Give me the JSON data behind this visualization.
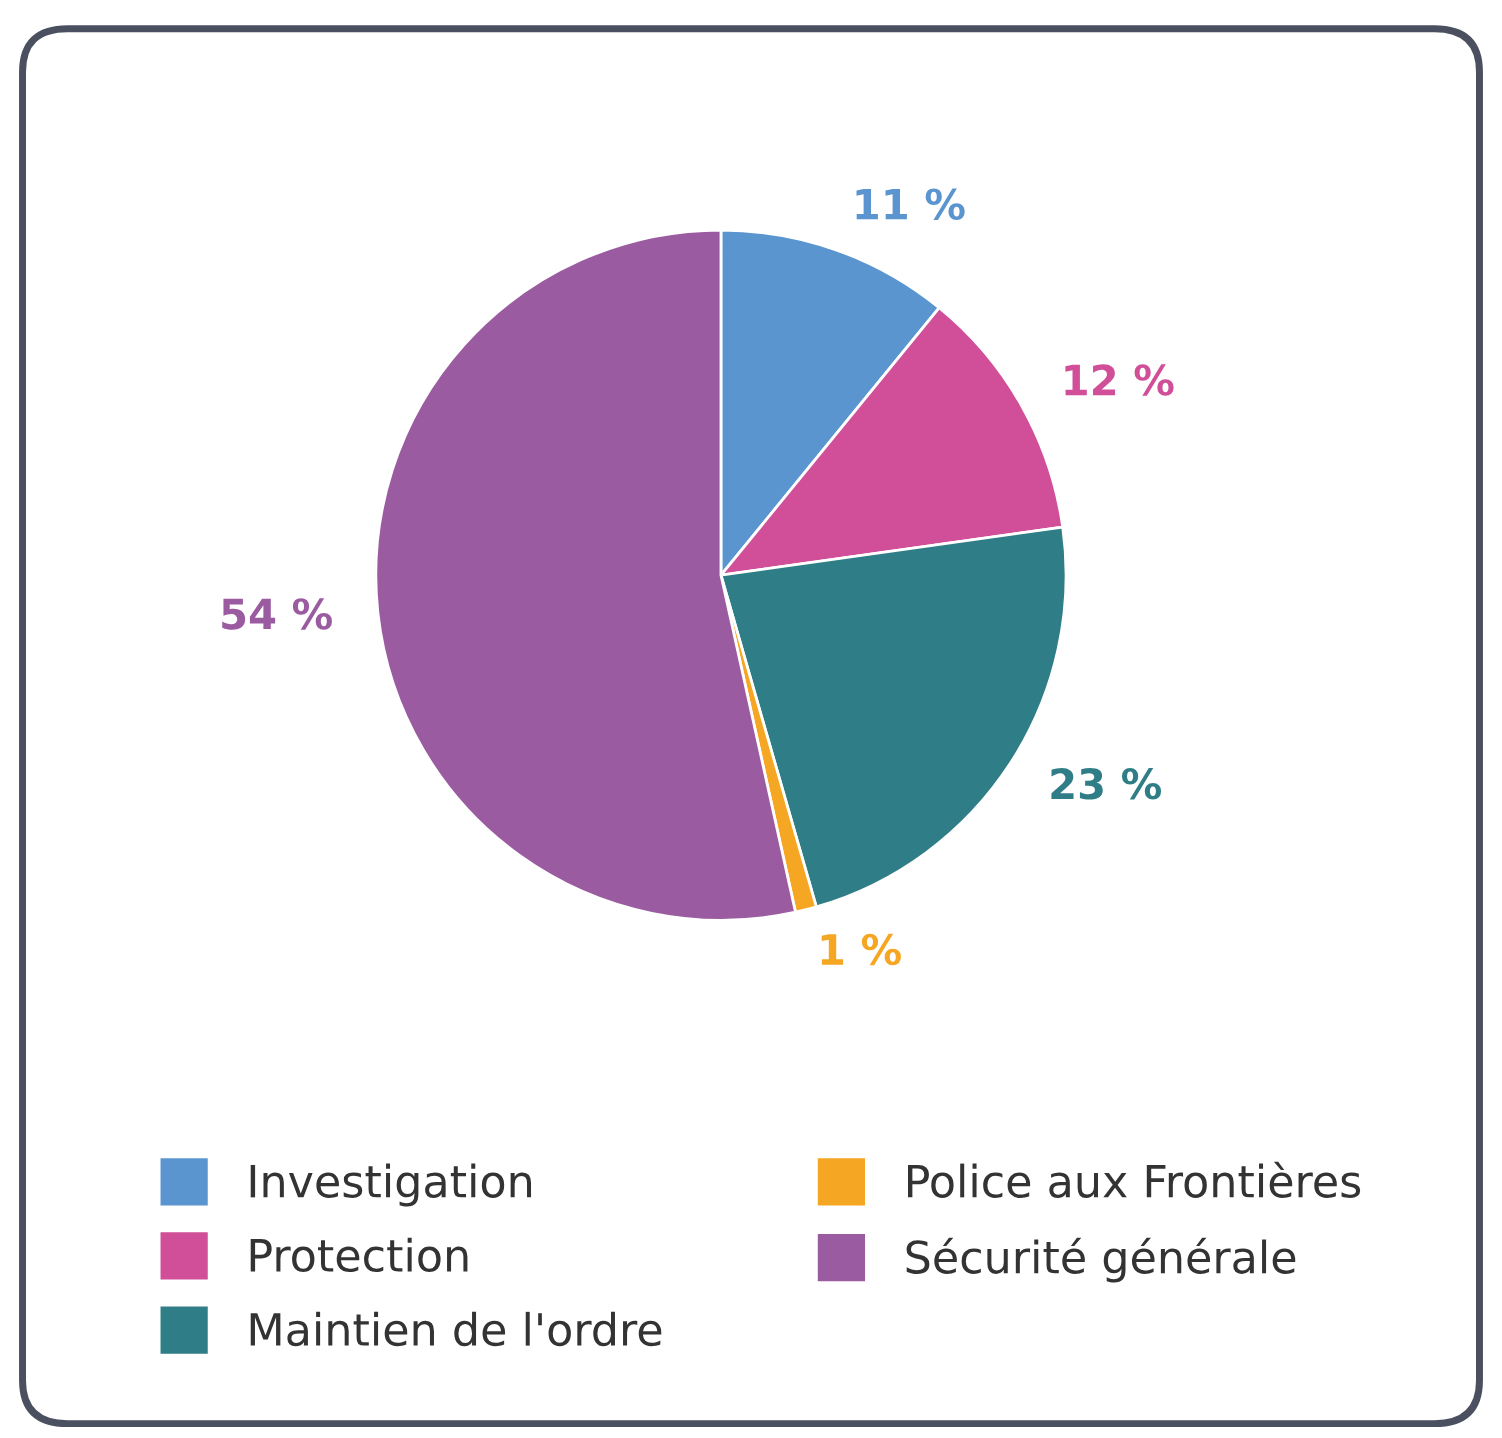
{
  "chart_data": {
    "type": "pie",
    "categories": [
      "Investigation",
      "Protection",
      "Maintien de l'ordre",
      "Police aux Frontières",
      "Sécurité générale"
    ],
    "values": [
      11,
      12,
      23,
      1,
      54
    ],
    "colors": [
      "#5a95d0",
      "#d04f98",
      "#2f7e87",
      "#f5a623",
      "#9a5ba0"
    ],
    "value_labels": [
      "11 %",
      "12 %",
      "23 %",
      "1 %",
      "54 %"
    ],
    "legend": "bottom"
  }
}
